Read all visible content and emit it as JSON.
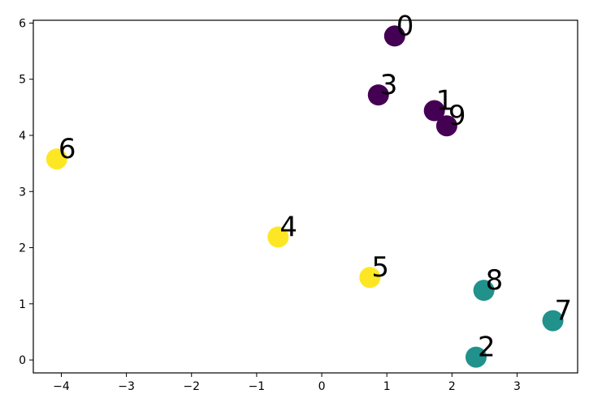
{
  "chart_data": {
    "type": "scatter",
    "title": "",
    "xlabel": "",
    "ylabel": "",
    "xlim": [
      -4.43,
      3.93
    ],
    "ylim": [
      -0.23,
      6.05
    ],
    "xticks": [
      -4,
      -3,
      -2,
      -1,
      0,
      1,
      2,
      3
    ],
    "yticks": [
      0,
      1,
      2,
      3,
      4,
      5,
      6
    ],
    "grid": false,
    "colors": {
      "purple": "#440154",
      "teal": "#21918c",
      "yellow": "#fde725"
    },
    "points": [
      {
        "label": "0",
        "x": 1.12,
        "y": 5.77,
        "color": "purple"
      },
      {
        "label": "1",
        "x": 1.73,
        "y": 4.44,
        "color": "purple"
      },
      {
        "label": "2",
        "x": 2.37,
        "y": 0.05,
        "color": "teal"
      },
      {
        "label": "3",
        "x": 0.87,
        "y": 4.72,
        "color": "purple"
      },
      {
        "label": "4",
        "x": -0.67,
        "y": 2.19,
        "color": "yellow"
      },
      {
        "label": "5",
        "x": 0.74,
        "y": 1.47,
        "color": "yellow"
      },
      {
        "label": "6",
        "x": -4.07,
        "y": 3.58,
        "color": "yellow"
      },
      {
        "label": "7",
        "x": 3.55,
        "y": 0.7,
        "color": "teal"
      },
      {
        "label": "8",
        "x": 2.49,
        "y": 1.24,
        "color": "teal"
      },
      {
        "label": "9",
        "x": 1.92,
        "y": 4.17,
        "color": "purple"
      }
    ]
  }
}
